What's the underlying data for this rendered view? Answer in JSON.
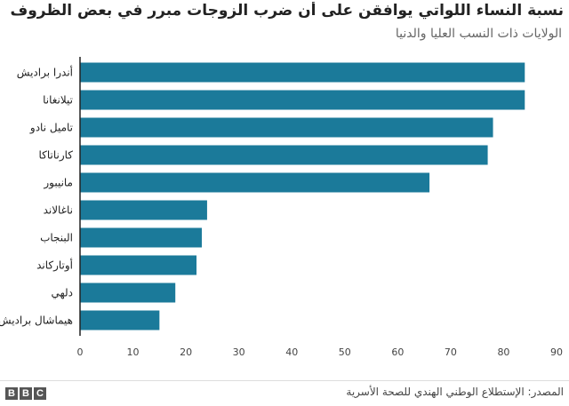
{
  "header": {
    "title": "نسبة النساء اللواتي يوافقن على أن ضرب الزوجات مبرر في بعض الظروف",
    "subtitle": "الولايات ذات النسب العليا والدنيا"
  },
  "footer": {
    "source": "المصدر: الإستطلاع الوطني الهندي للصحة الأسرية",
    "logo_letters": [
      "B",
      "B",
      "C"
    ]
  },
  "colors": {
    "bar": "#1b7a9a",
    "axis": "#222222",
    "tick_label": "#444444"
  },
  "chart_data": {
    "type": "bar",
    "orientation": "horizontal",
    "categories": [
      "أندرا براديش",
      "تيلانغانا",
      "تاميل نادو",
      "كارناتاكا",
      "مانيبور",
      "ناغالاند",
      "البنجاب",
      "أوتاركاند",
      "دلهي",
      "هيماشال براديش"
    ],
    "values": [
      84,
      84,
      78,
      77,
      66,
      24,
      23,
      22,
      18,
      15
    ],
    "xlim": [
      0,
      90
    ],
    "xticks": [
      0,
      10,
      20,
      30,
      40,
      50,
      60,
      70,
      80,
      90
    ],
    "grid": false,
    "legend": "none"
  }
}
